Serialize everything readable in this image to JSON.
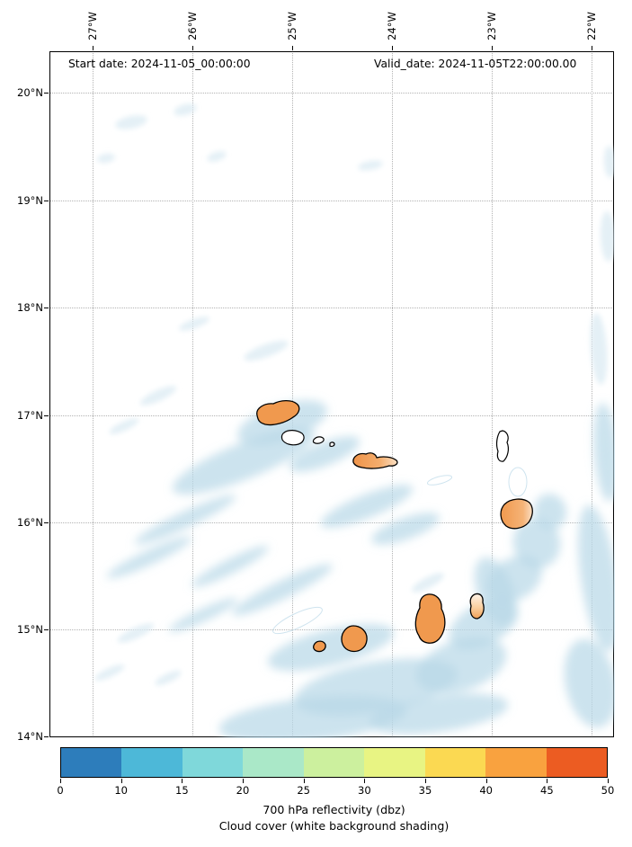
{
  "titles": {
    "start_date": "Start date: 2024-11-05_00:00:00",
    "valid_date": "Valid_date: 2024-11-05T22:00:00.00"
  },
  "axes": {
    "lon_ticks": [
      "27°W",
      "26°W",
      "25°W",
      "24°W",
      "23°W",
      "22°W"
    ],
    "lat_ticks": [
      "20°N",
      "19°N",
      "18°N",
      "17°N",
      "16°N",
      "15°N",
      "14°N"
    ]
  },
  "colorbar": {
    "ticks": [
      "0",
      "10",
      "15",
      "20",
      "25",
      "30",
      "35",
      "40",
      "45",
      "50"
    ],
    "colors": [
      "#2d7dbb",
      "#4db8d8",
      "#7fd8da",
      "#aae8c8",
      "#ccf09e",
      "#e8f483",
      "#fbd952",
      "#f9a23f",
      "#ec5c22"
    ],
    "range": [
      0,
      50
    ],
    "label_line1": "700 hPa reflectivity (dbz)",
    "label_line2": "Cloud cover (white background shading)"
  },
  "theme": {
    "cloud_main": "#b9d8e8",
    "cloud_faint": "#ddecf4",
    "island_fill": "#f0994e",
    "island_stroke": "#000000",
    "grid_color": "#b3b3b3",
    "frame_color": "#000000"
  }
}
